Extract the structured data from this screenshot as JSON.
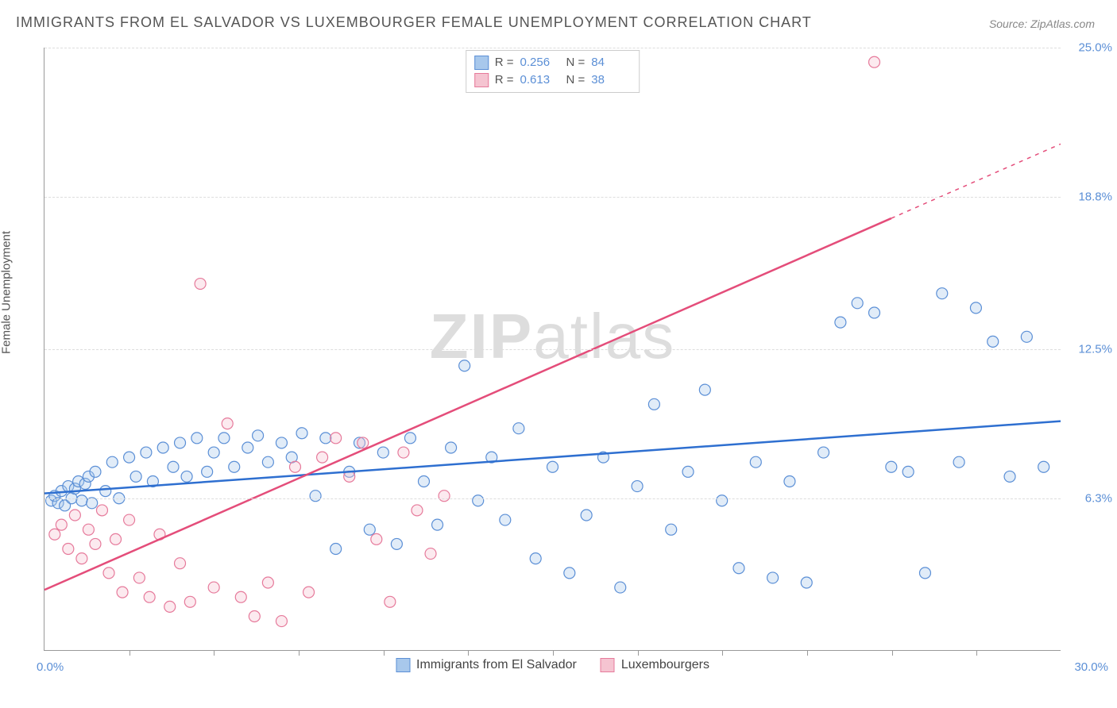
{
  "title": "IMMIGRANTS FROM EL SALVADOR VS LUXEMBOURGER FEMALE UNEMPLOYMENT CORRELATION CHART",
  "source": "Source: ZipAtlas.com",
  "watermark": {
    "bold": "ZIP",
    "light": "atlas"
  },
  "chart": {
    "type": "scatter",
    "xlim": [
      0,
      30
    ],
    "ylim": [
      0,
      25
    ],
    "x_label_min": "0.0%",
    "x_label_max": "30.0%",
    "y_axis_label": "Female Unemployment",
    "y_ticks": [
      {
        "v": 6.3,
        "label": "6.3%"
      },
      {
        "v": 12.5,
        "label": "12.5%"
      },
      {
        "v": 18.8,
        "label": "18.8%"
      },
      {
        "v": 25.0,
        "label": "25.0%"
      }
    ],
    "x_tick_positions": [
      2.5,
      5,
      7.5,
      10,
      12.5,
      15,
      17.5,
      20,
      22.5,
      25,
      27.5
    ],
    "background_color": "#ffffff",
    "grid_color": "#dddddd",
    "axis_color": "#999999",
    "tick_label_color": "#5b8fd6",
    "marker_radius": 7,
    "marker_stroke_width": 1.2,
    "marker_fill_opacity": 0.35,
    "trend_line_width": 2.5,
    "series": [
      {
        "name": "Immigrants from El Salvador",
        "color_fill": "#a8c8ec",
        "color_stroke": "#5b8fd6",
        "line_color": "#2e6fd0",
        "R": "0.256",
        "N": "84",
        "trend_y_at_x0": 6.5,
        "trend_y_at_x30": 9.5,
        "trend_dash_after_x": 30,
        "points": [
          [
            0.2,
            6.2
          ],
          [
            0.3,
            6.4
          ],
          [
            0.4,
            6.1
          ],
          [
            0.5,
            6.6
          ],
          [
            0.6,
            6.0
          ],
          [
            0.7,
            6.8
          ],
          [
            0.8,
            6.3
          ],
          [
            0.9,
            6.7
          ],
          [
            1.0,
            7.0
          ],
          [
            1.1,
            6.2
          ],
          [
            1.2,
            6.9
          ],
          [
            1.3,
            7.2
          ],
          [
            1.4,
            6.1
          ],
          [
            1.5,
            7.4
          ],
          [
            1.8,
            6.6
          ],
          [
            2.0,
            7.8
          ],
          [
            2.2,
            6.3
          ],
          [
            2.5,
            8.0
          ],
          [
            2.7,
            7.2
          ],
          [
            3.0,
            8.2
          ],
          [
            3.2,
            7.0
          ],
          [
            3.5,
            8.4
          ],
          [
            3.8,
            7.6
          ],
          [
            4.0,
            8.6
          ],
          [
            4.2,
            7.2
          ],
          [
            4.5,
            8.8
          ],
          [
            4.8,
            7.4
          ],
          [
            5.0,
            8.2
          ],
          [
            5.3,
            8.8
          ],
          [
            5.6,
            7.6
          ],
          [
            6.0,
            8.4
          ],
          [
            6.3,
            8.9
          ],
          [
            6.6,
            7.8
          ],
          [
            7.0,
            8.6
          ],
          [
            7.3,
            8.0
          ],
          [
            7.6,
            9.0
          ],
          [
            8.0,
            6.4
          ],
          [
            8.3,
            8.8
          ],
          [
            8.6,
            4.2
          ],
          [
            9.0,
            7.4
          ],
          [
            9.3,
            8.6
          ],
          [
            9.6,
            5.0
          ],
          [
            10.0,
            8.2
          ],
          [
            10.4,
            4.4
          ],
          [
            10.8,
            8.8
          ],
          [
            11.2,
            7.0
          ],
          [
            11.6,
            5.2
          ],
          [
            12.0,
            8.4
          ],
          [
            12.4,
            11.8
          ],
          [
            12.8,
            6.2
          ],
          [
            13.2,
            8.0
          ],
          [
            13.6,
            5.4
          ],
          [
            14.0,
            9.2
          ],
          [
            14.5,
            3.8
          ],
          [
            15.0,
            7.6
          ],
          [
            15.5,
            3.2
          ],
          [
            16.0,
            5.6
          ],
          [
            16.5,
            8.0
          ],
          [
            17.0,
            2.6
          ],
          [
            17.5,
            6.8
          ],
          [
            18.0,
            10.2
          ],
          [
            18.5,
            5.0
          ],
          [
            19.0,
            7.4
          ],
          [
            19.5,
            10.8
          ],
          [
            20.0,
            6.2
          ],
          [
            20.5,
            3.4
          ],
          [
            21.0,
            7.8
          ],
          [
            21.5,
            3.0
          ],
          [
            22.0,
            7.0
          ],
          [
            22.5,
            2.8
          ],
          [
            23.0,
            8.2
          ],
          [
            23.5,
            13.6
          ],
          [
            24.0,
            14.4
          ],
          [
            24.5,
            14.0
          ],
          [
            25.0,
            7.6
          ],
          [
            25.5,
            7.4
          ],
          [
            26.0,
            3.2
          ],
          [
            26.5,
            14.8
          ],
          [
            27.0,
            7.8
          ],
          [
            27.5,
            14.2
          ],
          [
            28.0,
            12.8
          ],
          [
            28.5,
            7.2
          ],
          [
            29.0,
            13.0
          ],
          [
            29.5,
            7.6
          ]
        ]
      },
      {
        "name": "Luxembourgers",
        "color_fill": "#f5c4d1",
        "color_stroke": "#e67a9b",
        "line_color": "#e44d7a",
        "R": "0.613",
        "N": "38",
        "trend_y_at_x0": 2.5,
        "trend_y_at_x30": 21.0,
        "trend_dash_after_x": 25,
        "points": [
          [
            0.3,
            4.8
          ],
          [
            0.5,
            5.2
          ],
          [
            0.7,
            4.2
          ],
          [
            0.9,
            5.6
          ],
          [
            1.1,
            3.8
          ],
          [
            1.3,
            5.0
          ],
          [
            1.5,
            4.4
          ],
          [
            1.7,
            5.8
          ],
          [
            1.9,
            3.2
          ],
          [
            2.1,
            4.6
          ],
          [
            2.3,
            2.4
          ],
          [
            2.5,
            5.4
          ],
          [
            2.8,
            3.0
          ],
          [
            3.1,
            2.2
          ],
          [
            3.4,
            4.8
          ],
          [
            3.7,
            1.8
          ],
          [
            4.0,
            3.6
          ],
          [
            4.3,
            2.0
          ],
          [
            4.6,
            15.2
          ],
          [
            5.0,
            2.6
          ],
          [
            5.4,
            9.4
          ],
          [
            5.8,
            2.2
          ],
          [
            6.2,
            1.4
          ],
          [
            6.6,
            2.8
          ],
          [
            7.0,
            1.2
          ],
          [
            7.4,
            7.6
          ],
          [
            7.8,
            2.4
          ],
          [
            8.2,
            8.0
          ],
          [
            8.6,
            8.8
          ],
          [
            9.0,
            7.2
          ],
          [
            9.4,
            8.6
          ],
          [
            9.8,
            4.6
          ],
          [
            10.2,
            2.0
          ],
          [
            10.6,
            8.2
          ],
          [
            11.0,
            5.8
          ],
          [
            11.4,
            4.0
          ],
          [
            11.8,
            6.4
          ],
          [
            24.5,
            24.4
          ]
        ]
      }
    ],
    "legend_bottom_labels": [
      "Immigrants from El Salvador",
      "Luxembourgers"
    ]
  }
}
